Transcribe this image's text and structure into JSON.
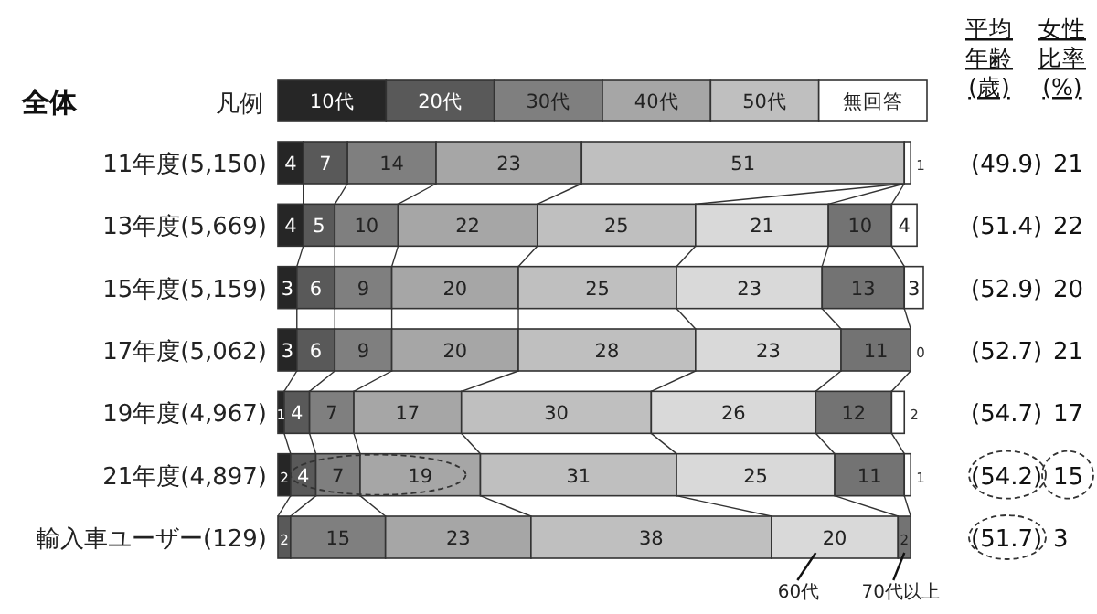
{
  "chart_data": {
    "type": "bar",
    "orientation": "horizontal",
    "stacked": true,
    "data_labels": true,
    "title": "全体",
    "legend_title": "凡例",
    "legend": "top",
    "categories": [
      "11年度(5,150)",
      "13年度(5,669)",
      "15年度(5,159)",
      "17年度(5,062)",
      "19年度(4,967)",
      "21年度(4,897)",
      "輸入車ユーザー(129)"
    ],
    "series": [
      {
        "name": "10代",
        "color": "#262626",
        "values": [
          4,
          4,
          3,
          3,
          1,
          2,
          0
        ],
        "value_labels": [
          "4",
          "4",
          "3",
          "3",
          "1",
          "2",
          null
        ]
      },
      {
        "name": "20代",
        "color": "#595959",
        "values": [
          7,
          5,
          6,
          6,
          4,
          4,
          2
        ]
      },
      {
        "name": "30代",
        "color": "#7f7f7f",
        "values": [
          14,
          10,
          9,
          9,
          7,
          7,
          15
        ]
      },
      {
        "name": "40代",
        "color": "#a6a6a6",
        "values": [
          23,
          22,
          20,
          20,
          17,
          19,
          23
        ]
      },
      {
        "name": "50代",
        "color": "#bfbfbf",
        "values": [
          51,
          25,
          25,
          28,
          30,
          31,
          38
        ]
      },
      {
        "name": "60代",
        "color": "#d9d9d9",
        "values": [
          null,
          21,
          23,
          23,
          26,
          25,
          20
        ]
      },
      {
        "name": "70代以上",
        "color": "#737373",
        "values": [
          null,
          10,
          13,
          11,
          12,
          11,
          2
        ]
      },
      {
        "name": "無回答",
        "color": "#ffffff",
        "values": [
          1,
          4,
          3,
          0,
          2,
          1,
          0
        ],
        "value_labels": [
          "1",
          "4",
          "3",
          "0",
          "2",
          "1",
          null
        ]
      }
    ],
    "annotations": [
      "平均年齢(歳)",
      "女性比率(%)",
      "(49.9)",
      "21",
      "(51.4)",
      "22",
      "(52.9)",
      "20",
      "(52.7)",
      "21",
      "(54.7)",
      "17",
      "(54.2)",
      "15",
      "(51.7)",
      "3"
    ]
  }
}
